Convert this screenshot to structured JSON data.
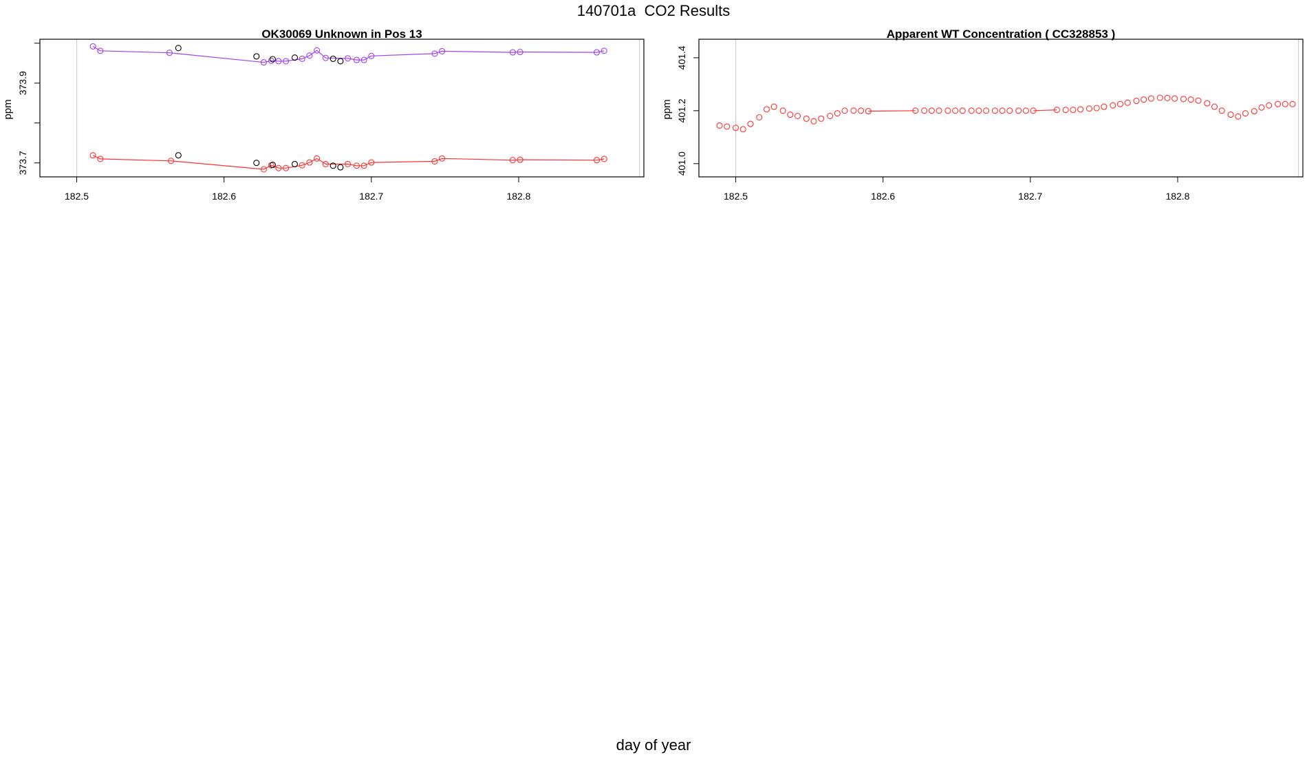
{
  "figure": {
    "title": "140701a  CO2 Results",
    "xlabel": "day of year"
  },
  "chart_data": [
    {
      "type": "scatter",
      "title": "OK30069    Unknown in Pos 13",
      "xlabel": "",
      "ylabel": "ppm",
      "xlim": [
        182.475,
        182.885
      ],
      "ylim": [
        373.665,
        374.01
      ],
      "xticks": [
        182.5,
        182.6,
        182.7,
        182.8
      ],
      "xtick_labels": [
        "182.5",
        "182.6",
        "182.7",
        "182.8"
      ],
      "yticks": [
        373.7,
        373.8,
        373.9,
        374.0
      ],
      "ytick_labels": [
        "373.7",
        "",
        "373.9",
        ""
      ],
      "vlines": [
        182.5,
        182.882
      ],
      "series": [
        {
          "color": "#a040f0",
          "line": true,
          "x": [
            182.511,
            182.516,
            182.563,
            182.627,
            182.632,
            182.637,
            182.642,
            182.653,
            182.658,
            182.663,
            182.669,
            182.684,
            182.69,
            182.695,
            182.7,
            182.743,
            182.748,
            182.796,
            182.801,
            182.853,
            182.858
          ],
          "y": [
            373.992,
            373.981,
            373.976,
            373.952,
            373.956,
            373.955,
            373.955,
            373.961,
            373.969,
            373.982,
            373.963,
            373.962,
            373.958,
            373.958,
            373.968,
            373.974,
            373.98,
            373.977,
            373.978,
            373.977,
            373.981
          ]
        },
        {
          "color": "#ff3030",
          "line": true,
          "x": [
            182.511,
            182.516,
            182.564,
            182.627,
            182.632,
            182.637,
            182.642,
            182.653,
            182.658,
            182.663,
            182.669,
            182.684,
            182.69,
            182.695,
            182.7,
            182.743,
            182.748,
            182.796,
            182.801,
            182.853,
            182.858
          ],
          "y": [
            373.719,
            373.71,
            373.705,
            373.684,
            373.694,
            373.687,
            373.687,
            373.694,
            373.701,
            373.711,
            373.697,
            373.697,
            373.693,
            373.693,
            373.701,
            373.704,
            373.711,
            373.707,
            373.708,
            373.707,
            373.71
          ]
        },
        {
          "color": "#000000",
          "line": false,
          "x": [
            182.569,
            182.622,
            182.633,
            182.648,
            182.674,
            182.679
          ],
          "y": [
            373.988,
            373.967,
            373.96,
            373.964,
            373.961,
            373.955
          ]
        },
        {
          "color": "#000000",
          "line": false,
          "x": [
            182.569,
            182.622,
            182.633,
            182.648,
            182.674,
            182.679
          ],
          "y": [
            373.719,
            373.7,
            373.695,
            373.697,
            373.693,
            373.689
          ]
        }
      ]
    },
    {
      "type": "scatter",
      "title": "Apparent WT Concentration ( CC328853 )",
      "xlabel": "",
      "ylabel": "ppm",
      "xlim": [
        182.475,
        182.885
      ],
      "ylim": [
        400.95,
        401.47
      ],
      "xticks": [
        182.5,
        182.6,
        182.7,
        182.8
      ],
      "xtick_labels": [
        "182.5",
        "182.6",
        "182.7",
        "182.8"
      ],
      "yticks": [
        401.0,
        401.2,
        401.4
      ],
      "ytick_labels": [
        "401.0",
        "401.2",
        "401.4"
      ],
      "vlines": [
        182.5,
        182.882
      ],
      "series": [
        {
          "color": "#ff3030",
          "line": false,
          "x": [
            182.489,
            182.494,
            182.5,
            182.505,
            182.51,
            182.516,
            182.521,
            182.526,
            182.532,
            182.537,
            182.542,
            182.548,
            182.553,
            182.558,
            182.564,
            182.569,
            182.574,
            182.58,
            182.585,
            182.59,
            182.622,
            182.628,
            182.633,
            182.638,
            182.644,
            182.649,
            182.654,
            182.66,
            182.665,
            182.67,
            182.676,
            182.681,
            182.686,
            182.692,
            182.697,
            182.702,
            182.718,
            182.724,
            182.729,
            182.734,
            182.74,
            182.745,
            182.75,
            182.756,
            182.761,
            182.766,
            182.772,
            182.777,
            182.782,
            182.788,
            182.793,
            182.798,
            182.804,
            182.809,
            182.814,
            182.82,
            182.825,
            182.83,
            182.836,
            182.841,
            182.846,
            182.852,
            182.857,
            182.862,
            182.868,
            182.873,
            182.878
          ],
          "y": [
            401.144,
            401.14,
            401.135,
            401.13,
            401.15,
            401.175,
            401.205,
            401.215,
            401.2,
            401.185,
            401.18,
            401.17,
            401.16,
            401.17,
            401.18,
            401.19,
            401.2,
            401.2,
            401.2,
            401.198,
            401.2,
            401.2,
            401.2,
            401.2,
            401.2,
            401.2,
            401.2,
            401.2,
            401.2,
            401.2,
            401.2,
            401.2,
            401.2,
            401.2,
            401.2,
            401.2,
            401.203,
            401.203,
            401.203,
            401.205,
            401.208,
            401.21,
            401.215,
            401.22,
            401.225,
            401.23,
            401.237,
            401.242,
            401.246,
            401.249,
            401.248,
            401.246,
            401.244,
            401.242,
            401.238,
            401.228,
            401.215,
            401.2,
            401.185,
            401.178,
            401.19,
            401.198,
            401.212,
            401.22,
            401.225,
            401.225,
            401.225
          ]
        },
        {
          "color": "#ff3030",
          "line": true,
          "x": [
            182.59,
            182.622
          ],
          "y": [
            401.198,
            401.2
          ]
        },
        {
          "color": "#ff3030",
          "line": true,
          "x": [
            182.702,
            182.718
          ],
          "y": [
            401.2,
            401.203
          ]
        }
      ]
    }
  ]
}
